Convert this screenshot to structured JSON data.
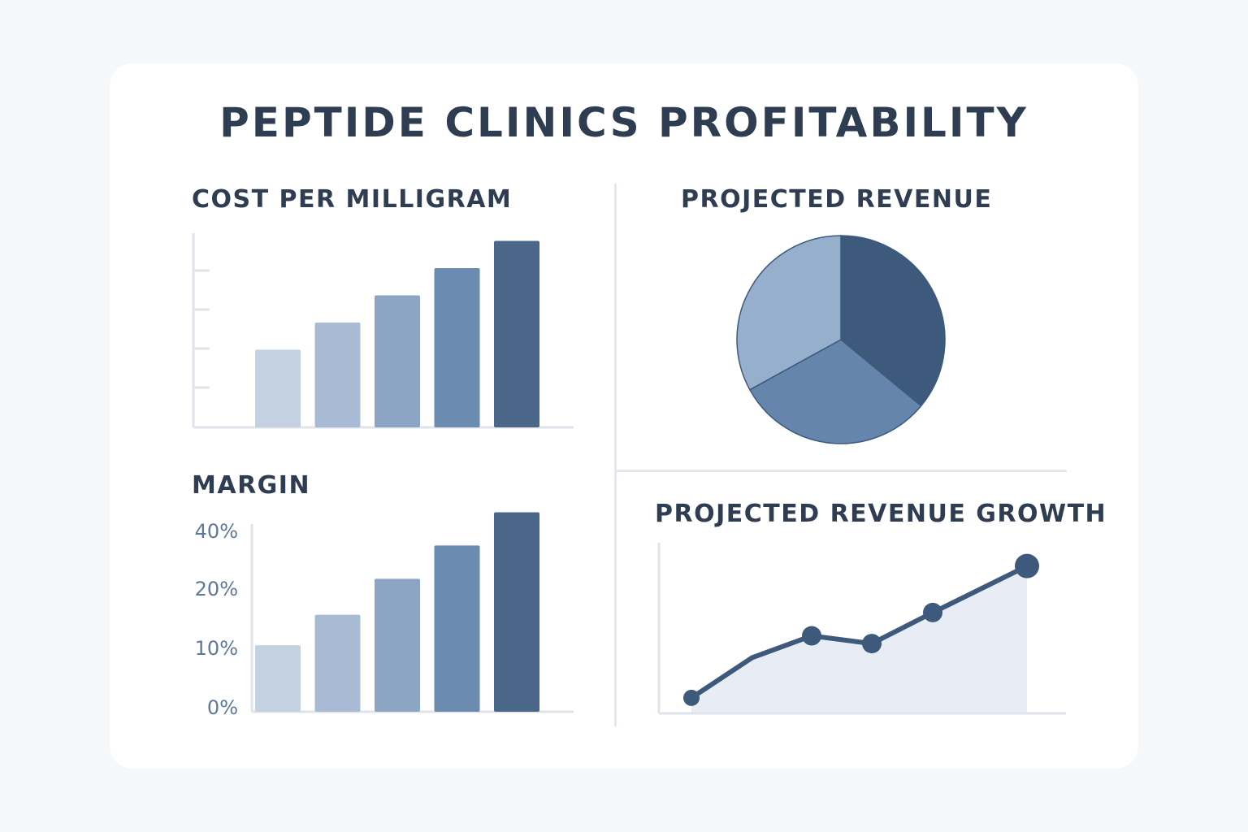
{
  "title": "PEPTIDE CLINICS PROFITABILITY",
  "colors": {
    "text": "#2e3d52",
    "axis": "#dfe3ea",
    "bars": [
      "#c3d1e1",
      "#a9bbd4",
      "#8ba5c2",
      "#6b8bb0",
      "#4a6789"
    ],
    "pie": [
      "#3d5a7c",
      "#6585ad",
      "#96afcc"
    ],
    "line": "#3d5a7c",
    "area": "#e8edf5",
    "tick_text": "#5f7898"
  },
  "chart_data": [
    {
      "type": "bar",
      "title": "COST PER MILLIGRAM",
      "categories": [
        "",
        "",
        "",
        "",
        ""
      ],
      "values": [
        2.0,
        2.7,
        3.4,
        4.1,
        4.8
      ],
      "ylim": [
        0,
        5
      ],
      "grid": false,
      "xlabel": "",
      "ylabel": ""
    },
    {
      "type": "pie",
      "title": "PROJECTED REVENUE",
      "labels": [
        "",
        "",
        ""
      ],
      "values": [
        36,
        31,
        33
      ]
    },
    {
      "type": "bar",
      "title": "MARGIN",
      "categories": [
        "",
        "",
        "",
        "",
        ""
      ],
      "values": [
        12,
        17.5,
        24,
        30,
        36
      ],
      "yticks": [
        0,
        10,
        20,
        40
      ],
      "ytick_labels": [
        "0%",
        "10%",
        "20%",
        "40%"
      ],
      "ylim": [
        0,
        40
      ],
      "grid": false,
      "xlabel": "",
      "ylabel": ""
    },
    {
      "type": "area",
      "title": "PROJECTED REVENUE GROWTH",
      "x": [
        1,
        2,
        3,
        4,
        5,
        6
      ],
      "y": [
        1.0,
        3.6,
        5.0,
        4.5,
        6.5,
        9.5
      ],
      "markers": [
        true,
        false,
        true,
        true,
        true,
        true
      ],
      "ylim": [
        0,
        11
      ],
      "grid": false,
      "xlabel": "",
      "ylabel": ""
    }
  ]
}
